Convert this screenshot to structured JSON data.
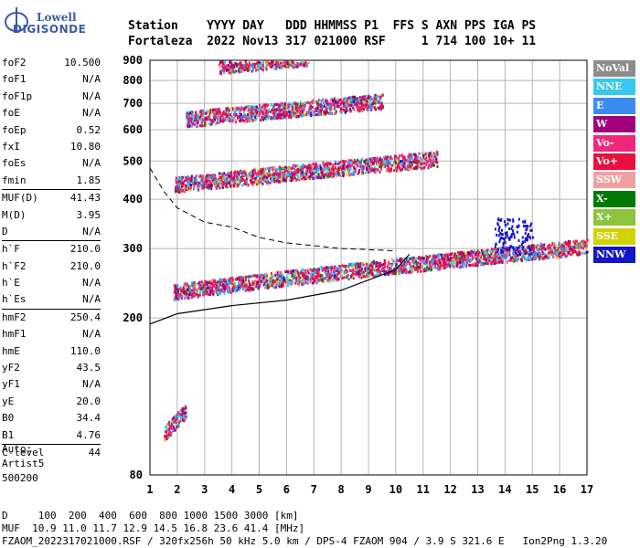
{
  "logo": {
    "line1": "Lowell",
    "line2": "DIGISONDE"
  },
  "header": {
    "line1": "Station    YYYY DAY   DDD HHMMSS P1  FFS S AXN PPS IGA PS",
    "line2": "Fortaleza  2022 Nov13 317 021000 RSF     1 714 100 10+ 11"
  },
  "params": [
    {
      "k": "foF2",
      "v": "10.500"
    },
    {
      "k": "foF1",
      "v": "N/A"
    },
    {
      "k": "foF1p",
      "v": "N/A"
    },
    {
      "k": "foE",
      "v": "N/A"
    },
    {
      "k": "foEp",
      "v": "0.52"
    },
    {
      "k": "fxI",
      "v": "10.80"
    },
    {
      "k": "foEs",
      "v": "N/A"
    },
    {
      "k": "fmin",
      "v": "1.85"
    },
    {
      "k": "MUF(D)",
      "v": "41.43"
    },
    {
      "k": "M(D)",
      "v": "3.95"
    },
    {
      "k": "D",
      "v": "N/A"
    },
    {
      "k": "h`F",
      "v": "210.0"
    },
    {
      "k": "h`F2",
      "v": "210.0"
    },
    {
      "k": "h`E",
      "v": "N/A"
    },
    {
      "k": "h`Es",
      "v": "N/A"
    },
    {
      "k": "hmF2",
      "v": "250.4"
    },
    {
      "k": "hmF1",
      "v": "N/A"
    },
    {
      "k": "hmE",
      "v": "110.0"
    },
    {
      "k": "yF2",
      "v": "43.5"
    },
    {
      "k": "yF1",
      "v": "N/A"
    },
    {
      "k": "yE",
      "v": "20.0"
    },
    {
      "k": "B0",
      "v": "34.4"
    },
    {
      "k": "B1",
      "v": "4.76"
    },
    {
      "k": "C-level",
      "v": "44"
    }
  ],
  "auto": {
    "l1": "Auto:",
    "l2": "Artist5",
    "l3": "500200"
  },
  "bottom": {
    "d_row": "D     100  200  400  600  800 1000 1500 3000 [km]",
    "muf_row": "MUF  10.9 11.0 11.7 12.9 14.5 16.8 23.6 41.4 [MHz]",
    "file_row": "FZAOM_2022317021000.RSF / 320fx256h 50 kHz 5.0 km / DPS-4 FZAOM 904 / 3.9 S 321.6 E   Ion2Png 1.3.20"
  },
  "legend": [
    {
      "label": "NoVal",
      "color": "#8c8c8c"
    },
    {
      "label": "NNE",
      "color": "#36c8f0"
    },
    {
      "label": "E",
      "color": "#3c8cf0"
    },
    {
      "label": "W",
      "color": "#a0007a"
    },
    {
      "label": "Vo-",
      "color": "#f0287a"
    },
    {
      "label": "Vo+",
      "color": "#e8103c"
    },
    {
      "label": "SSW",
      "color": "#f0a0a0"
    },
    {
      "label": "X-",
      "color": "#007a00"
    },
    {
      "label": "X+",
      "color": "#8cc43c"
    },
    {
      "label": "SSE",
      "color": "#d2d200"
    },
    {
      "label": "NNW",
      "color": "#1414c8"
    }
  ],
  "chart_data": {
    "type": "scatter",
    "title": "",
    "xlabel": "",
    "ylabel": "",
    "xlim": [
      1,
      17
    ],
    "ylim": [
      80,
      900
    ],
    "x_ticks": [
      1,
      2,
      3,
      4,
      5,
      6,
      7,
      8,
      9,
      10,
      11,
      12,
      13,
      14,
      15,
      16,
      17
    ],
    "y_ticks": [
      80,
      200,
      300,
      400,
      500,
      600,
      700,
      800,
      900
    ],
    "grid": true,
    "y_scale": "log",
    "traces": [
      {
        "name": "F-trace (1st hop)",
        "fmin": 1.85,
        "fmax": 17,
        "h_start": 230,
        "h_end": 300
      },
      {
        "name": "F-trace (2nd hop)",
        "fmin": 1.9,
        "fmax": 11.5,
        "h_start": 430,
        "h_end": 500
      },
      {
        "name": "F-trace (3rd hop)",
        "fmin": 2.3,
        "fmax": 9.5,
        "h_start": 630,
        "h_end": 700
      },
      {
        "name": "F-trace (4th hop)",
        "fmin": 3.5,
        "fmax": 6.8,
        "h_start": 860,
        "h_end": 900
      },
      {
        "name": "E-region echoes",
        "fmin": 1.5,
        "fmax": 2.3,
        "h_start": 100,
        "h_end": 115
      }
    ],
    "dashed_curve": {
      "x": [
        1,
        1.5,
        2,
        3,
        4,
        5,
        6,
        7,
        8,
        9,
        10
      ],
      "y": [
        480,
        420,
        380,
        350,
        340,
        320,
        310,
        305,
        300,
        298,
        296
      ]
    },
    "profile_curve": {
      "x": [
        1,
        2,
        4,
        6,
        8,
        10,
        10.5
      ],
      "y": [
        193,
        205,
        215,
        222,
        235,
        265,
        290
      ]
    }
  }
}
